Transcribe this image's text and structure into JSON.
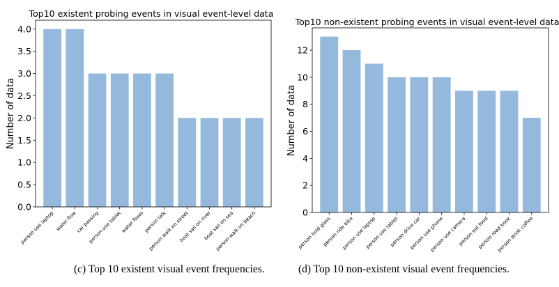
{
  "chart_data": [
    {
      "type": "bar",
      "title": "Top10 existent probing events in visual event-level data",
      "xlabel": "",
      "ylabel": "Number of data",
      "categories": [
        "person use laptop",
        "water flow",
        "car passing",
        "person use tablet",
        "water flows",
        "person talk",
        "person walk on street",
        "boat sail on river",
        "boat sail on sea",
        "person walk on beach"
      ],
      "values": [
        4,
        4,
        3,
        3,
        3,
        3,
        2,
        2,
        2,
        2
      ],
      "ylim": [
        0,
        4.2
      ],
      "yticks": [
        "0.0",
        "0.5",
        "1.0",
        "1.5",
        "2.0",
        "2.5",
        "3.0",
        "3.5",
        "4.0"
      ],
      "bar_color": "#94b9dc",
      "grid": false,
      "caption": "(c) Top 10 existent visual event frequencies."
    },
    {
      "type": "bar",
      "title": "Top10 non-existent probing events in visual event-level data",
      "xlabel": "",
      "ylabel": "Number of data",
      "categories": [
        "person hold glass",
        "person ride bike",
        "person use laptop",
        "person use tablet",
        "person drive car",
        "person use phone",
        "person use camera",
        "person eat food",
        "person read book",
        "person drink coffee"
      ],
      "values": [
        13,
        12,
        11,
        10,
        10,
        10,
        9,
        9,
        9,
        7
      ],
      "ylim": [
        0,
        13.65
      ],
      "yticks": [
        "0",
        "2",
        "4",
        "6",
        "8",
        "10",
        "12"
      ],
      "bar_color": "#94b9dc",
      "grid": false,
      "caption": "(d) Top 10 non-existent visual event frequencies."
    }
  ]
}
